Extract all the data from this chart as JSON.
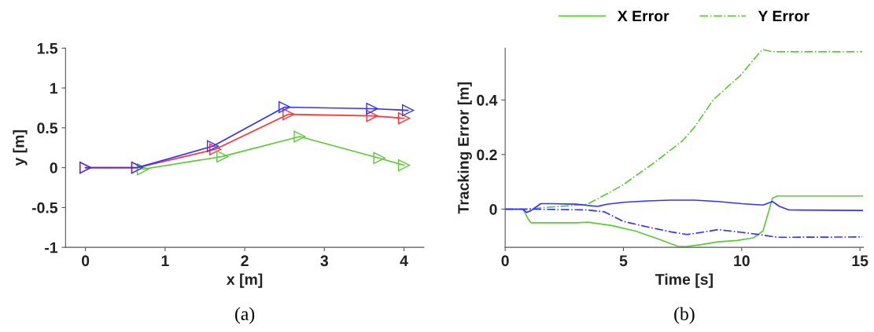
{
  "chart_data": [
    {
      "type": "line",
      "xlabel": "x [m]",
      "ylabel": "y [m]",
      "annotations": [
        "(a)"
      ],
      "xlim": [
        -0.25,
        4.25
      ],
      "ylim": [
        -1,
        1.5
      ],
      "xticks": [
        0,
        1,
        2,
        3,
        4
      ],
      "yticks": [
        -1,
        -0.5,
        0,
        0.5,
        1,
        1.5
      ],
      "grid": false,
      "marker": "triangle",
      "line_style": "solid",
      "series": [
        {
          "color": "#ff3333",
          "x": [
            0,
            0.65,
            1.63,
            2.55,
            3.6,
            4.0
          ],
          "values": [
            0,
            0,
            0.23,
            0.67,
            0.65,
            0.62
          ]
        },
        {
          "color": "#5ccb33",
          "x": [
            0.72,
            1.72,
            2.69,
            3.69,
            4.0
          ],
          "values": [
            -0.02,
            0.14,
            0.39,
            0.12,
            0.03
          ]
        },
        {
          "color": "#3333ff",
          "x": [
            0,
            0.65,
            1.6,
            2.5,
            3.6,
            4.05
          ],
          "values": [
            0,
            0,
            0.27,
            0.76,
            0.74,
            0.72
          ]
        }
      ]
    },
    {
      "type": "line",
      "xlabel": "Time [s]",
      "ylabel": "Tracking Error [m]",
      "annotations": [
        "(b)"
      ],
      "xlim": [
        0,
        15.15
      ],
      "ylim": [
        -0.14,
        0.59
      ],
      "xticks": [
        0,
        5,
        10,
        15
      ],
      "yticks": [
        0,
        0.2,
        0.4
      ],
      "grid": false,
      "legend": "top",
      "series": [
        {
          "name": "X Error",
          "color": "#5ccb33",
          "line_style": "solid",
          "x": [
            0,
            0.75,
            1.0,
            1.1,
            2,
            3,
            3.5,
            4.5,
            5.5,
            6.5,
            7.3,
            7.6,
            8.3,
            9.0,
            9.8,
            10.5,
            10.9,
            11.1,
            11.3,
            11.5,
            15.1
          ],
          "values": [
            0,
            0,
            -0.04,
            -0.05,
            -0.05,
            -0.05,
            -0.048,
            -0.06,
            -0.08,
            -0.11,
            -0.136,
            -0.138,
            -0.13,
            -0.12,
            -0.115,
            -0.105,
            -0.08,
            -0.02,
            0.04,
            0.048,
            0.048
          ]
        },
        {
          "name": "Y Error",
          "color": "#5ccb33",
          "line_style": "dashdot",
          "x": [
            0,
            0.8,
            3.47,
            4.39,
            5,
            6.3,
            7.49,
            8.0,
            8.79,
            9.94,
            10.87,
            11.3,
            15.1
          ],
          "values": [
            0,
            0,
            0.018,
            0.06,
            0.09,
            0.17,
            0.25,
            0.3,
            0.4,
            0.49,
            0.585,
            0.577,
            0.577
          ]
        },
        {
          "color": "#3333ff",
          "line_style": "solid",
          "x": [
            0,
            0.75,
            0.9,
            1.1,
            1.5,
            2,
            3,
            3.9,
            4.3,
            5,
            6,
            7,
            8,
            9,
            10,
            10.9,
            11.3,
            11.6,
            12,
            15.1
          ],
          "values": [
            0,
            0,
            -0.012,
            -0.005,
            0.02,
            0.02,
            0.018,
            0.01,
            0.018,
            0.025,
            0.03,
            0.033,
            0.033,
            0.028,
            0.02,
            0.015,
            0.028,
            0.01,
            -0.003,
            -0.005
          ]
        },
        {
          "color": "#3333ff",
          "line_style": "dashdot",
          "x": [
            0,
            1,
            3.5,
            4.2,
            5,
            6,
            7,
            7.7,
            8.3,
            9,
            10,
            10.9,
            11.5,
            15.1
          ],
          "values": [
            0,
            0,
            -0.003,
            -0.01,
            -0.045,
            -0.065,
            -0.083,
            -0.093,
            -0.085,
            -0.075,
            -0.085,
            -0.095,
            -0.103,
            -0.102
          ]
        }
      ]
    }
  ]
}
